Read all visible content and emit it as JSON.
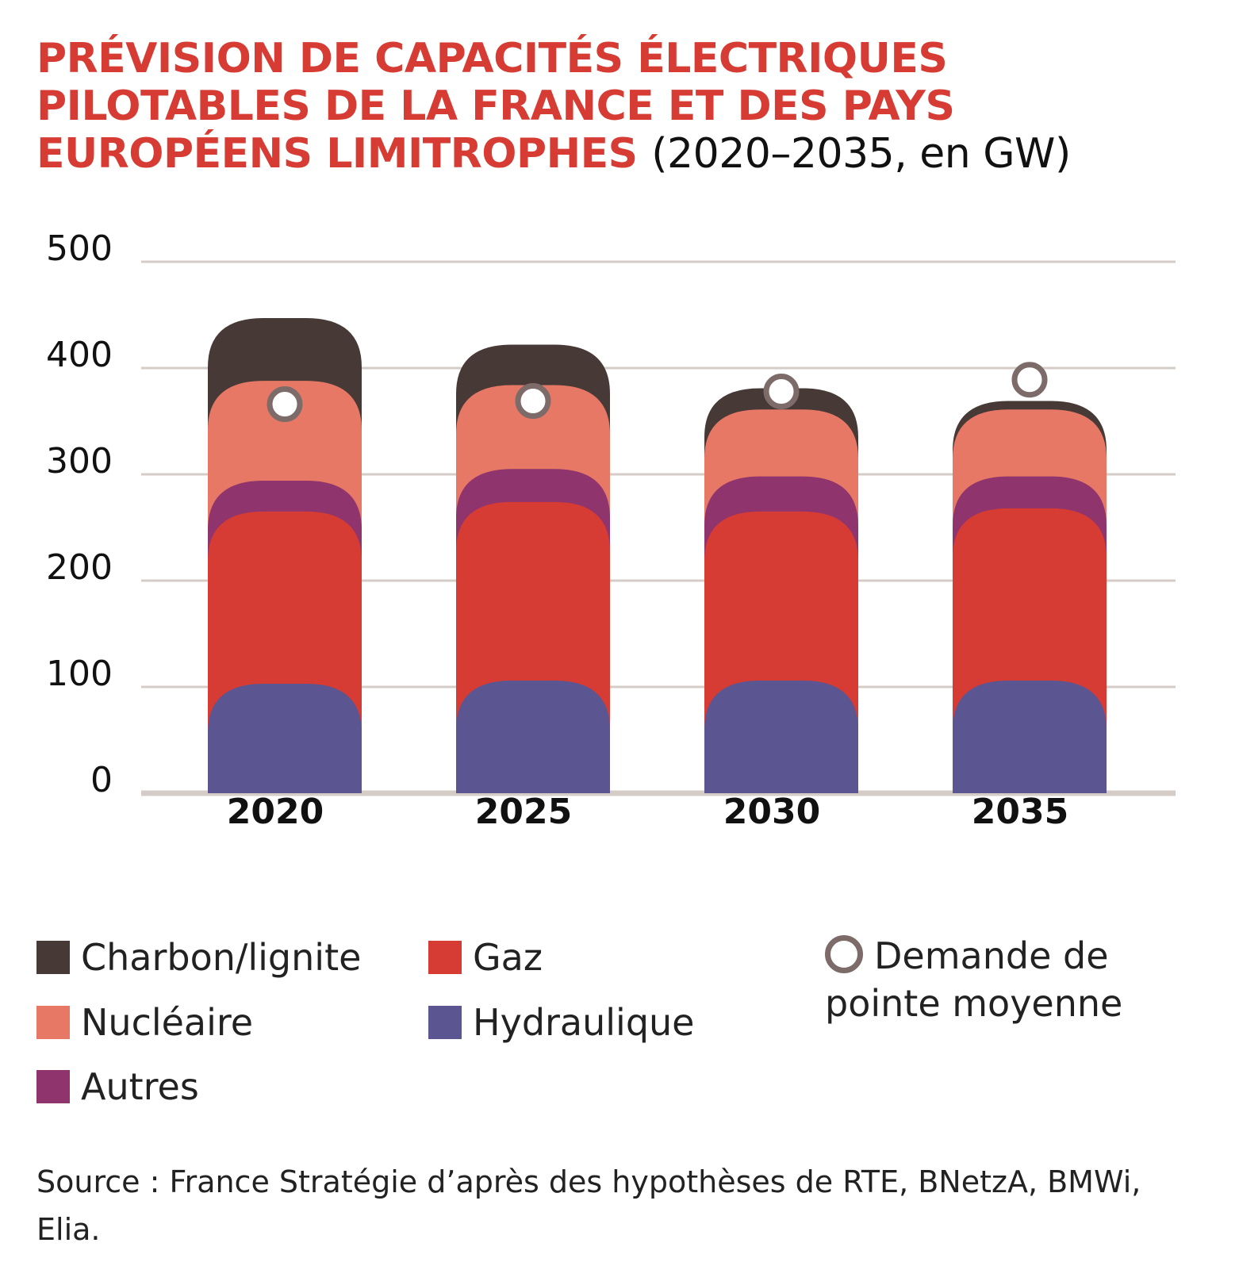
{
  "chart_data": {
    "type": "bar",
    "stacked": true,
    "title": "PRÉVISION DE CAPACITÉS ÉLECTRIQUES PILOTABLES DE LA FRANCE ET DES PAYS EUROPÉENS LIMITROPHES",
    "subtitle": "(2020–2035, en GW)",
    "categories": [
      "2020",
      "2025",
      "2030",
      "2035"
    ],
    "ylim": [
      0,
      500
    ],
    "yticks": [
      "0",
      "100",
      "200",
      "300",
      "400",
      "500"
    ],
    "grid": true,
    "legend_position": "bottom",
    "series": [
      {
        "name": "Hydraulique",
        "color": "#5b5591",
        "values": [
          103,
          106,
          106,
          106
        ]
      },
      {
        "name": "Gaz",
        "color": "#d63c33",
        "values": [
          162,
          168,
          159,
          162
        ]
      },
      {
        "name": "Autres",
        "color": "#8f346c",
        "values": [
          29,
          31,
          33,
          30
        ]
      },
      {
        "name": "Nucléaire",
        "color": "#e77866",
        "values": [
          94,
          79,
          63,
          63
        ]
      },
      {
        "name": "Charbon/lignite",
        "color": "#473936",
        "values": [
          59,
          38,
          20,
          8
        ]
      }
    ],
    "markers": {
      "name": "Demande de pointe moyenne",
      "color": "#7d6b69",
      "values": [
        366,
        369,
        378,
        389
      ]
    },
    "source": "Source : France Stratégie d’après des hypothèses de RTE, BNetzA, BMWi, Elia."
  }
}
